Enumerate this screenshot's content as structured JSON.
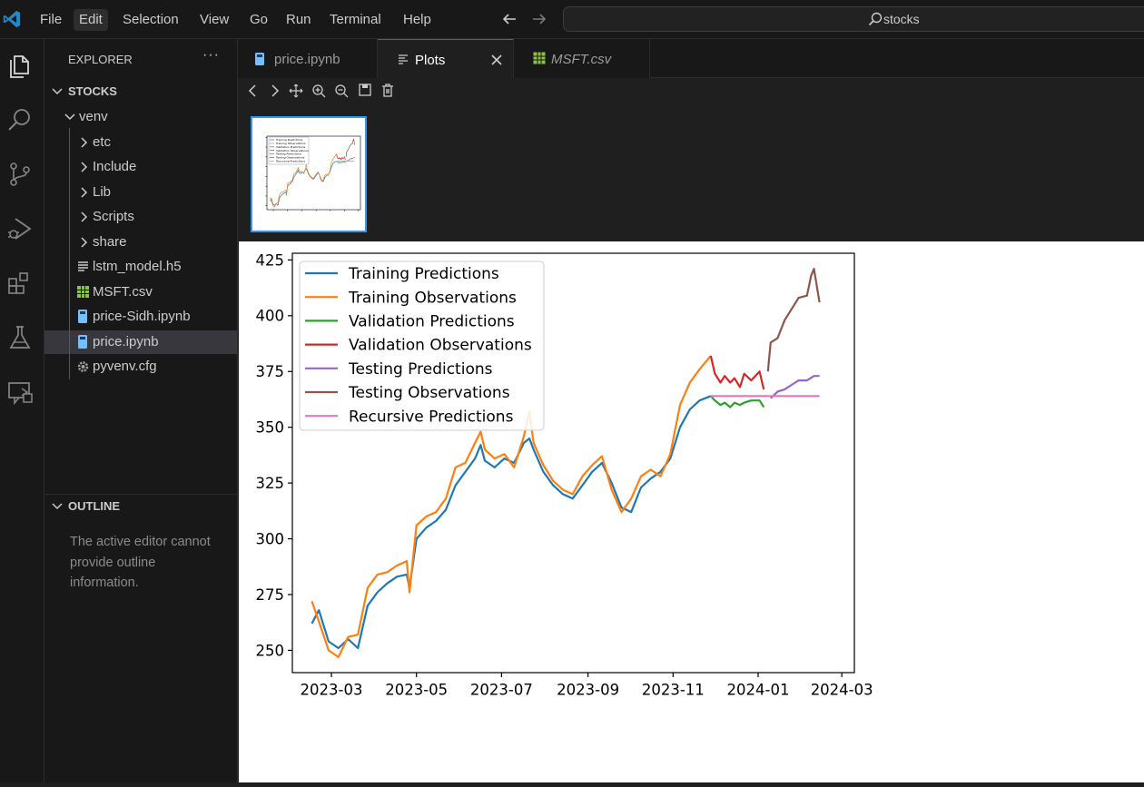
{
  "menu": [
    "File",
    "Edit",
    "Selection",
    "View",
    "Go",
    "Run",
    "Terminal",
    "Help"
  ],
  "command_center": {
    "label": "stocks"
  },
  "sidebar": {
    "title": "EXPLORER",
    "more": "···",
    "workspace": "STOCKS",
    "tree": [
      {
        "label": "venv",
        "kind": "folder-open",
        "depth": 1
      },
      {
        "label": "etc",
        "kind": "folder",
        "depth": 2
      },
      {
        "label": "Include",
        "kind": "folder",
        "depth": 2
      },
      {
        "label": "Lib",
        "kind": "folder",
        "depth": 2
      },
      {
        "label": "Scripts",
        "kind": "folder",
        "depth": 2
      },
      {
        "label": "share",
        "kind": "folder",
        "depth": 2
      },
      {
        "label": "lstm_model.h5",
        "kind": "text-file",
        "depth": 2
      },
      {
        "label": "MSFT.csv",
        "kind": "csv-file",
        "depth": 2
      },
      {
        "label": "price-Sidh.ipynb",
        "kind": "notebook-file",
        "depth": 2
      },
      {
        "label": "price.ipynb",
        "kind": "notebook-file",
        "depth": 2,
        "selected": true
      },
      {
        "label": "pyvenv.cfg",
        "kind": "config-file",
        "depth": 2
      }
    ],
    "outline_title": "OUTLINE",
    "outline_message": "The active editor cannot provide outline information."
  },
  "tabs": [
    {
      "label": "price.ipynb",
      "icon": "notebook-icon",
      "active": false,
      "italic": false
    },
    {
      "label": "Plots",
      "icon": "plots-icon",
      "active": true,
      "italic": false
    },
    {
      "label": "MSFT.csv",
      "icon": "csv-icon",
      "active": false,
      "italic": true
    }
  ],
  "colors": {
    "accent": "#0078d4",
    "training_pred": "#1f77b4",
    "training_obs": "#ff7f0e",
    "validation_pred": "#2ca02c",
    "validation_obs": "#d62728",
    "testing_pred": "#9467bd",
    "testing_obs": "#8c564b",
    "recursive_pred": "#e377c2"
  },
  "chart_data": {
    "type": "line",
    "title": "",
    "xlabel": "",
    "ylabel": "",
    "x_ticks": [
      "2023-03",
      "2023-05",
      "2023-07",
      "2023-09",
      "2023-11",
      "2024-01",
      "2024-03"
    ],
    "xlim": [
      "2023-02-01",
      "2024-03-10"
    ],
    "y_ticks": [
      250,
      275,
      300,
      325,
      350,
      375,
      400,
      425
    ],
    "ylim": [
      240,
      428
    ],
    "legend_position": "upper-left",
    "series": [
      {
        "name": "Training Predictions",
        "color_key": "training_pred",
        "points": [
          [
            "2023-02-15",
            262
          ],
          [
            "2023-02-20",
            268
          ],
          [
            "2023-02-27",
            254
          ],
          [
            "2023-03-06",
            251
          ],
          [
            "2023-03-13",
            255
          ],
          [
            "2023-03-20",
            251
          ],
          [
            "2023-03-27",
            270
          ],
          [
            "2023-04-03",
            276
          ],
          [
            "2023-04-10",
            280
          ],
          [
            "2023-04-17",
            283
          ],
          [
            "2023-04-24",
            284
          ],
          [
            "2023-04-26",
            278
          ],
          [
            "2023-05-01",
            300
          ],
          [
            "2023-05-08",
            305
          ],
          [
            "2023-05-15",
            308
          ],
          [
            "2023-05-22",
            313
          ],
          [
            "2023-05-29",
            324
          ],
          [
            "2023-06-05",
            330
          ],
          [
            "2023-06-12",
            336
          ],
          [
            "2023-06-16",
            342
          ],
          [
            "2023-06-19",
            335
          ],
          [
            "2023-06-26",
            332
          ],
          [
            "2023-07-03",
            336
          ],
          [
            "2023-07-10",
            334
          ],
          [
            "2023-07-17",
            343
          ],
          [
            "2023-07-21",
            345
          ],
          [
            "2023-07-24",
            340
          ],
          [
            "2023-07-31",
            330
          ],
          [
            "2023-08-07",
            324
          ],
          [
            "2023-08-14",
            320
          ],
          [
            "2023-08-21",
            318
          ],
          [
            "2023-08-28",
            324
          ],
          [
            "2023-09-04",
            330
          ],
          [
            "2023-09-11",
            334
          ],
          [
            "2023-09-18",
            325
          ],
          [
            "2023-09-25",
            314
          ],
          [
            "2023-10-02",
            312
          ],
          [
            "2023-10-09",
            323
          ],
          [
            "2023-10-16",
            327
          ],
          [
            "2023-10-23",
            330
          ],
          [
            "2023-10-30",
            336
          ],
          [
            "2023-11-06",
            350
          ],
          [
            "2023-11-13",
            358
          ],
          [
            "2023-11-20",
            362
          ],
          [
            "2023-11-28",
            364
          ]
        ]
      },
      {
        "name": "Training Observations",
        "color_key": "training_obs",
        "points": [
          [
            "2023-02-15",
            272
          ],
          [
            "2023-02-20",
            263
          ],
          [
            "2023-02-27",
            250
          ],
          [
            "2023-03-06",
            247
          ],
          [
            "2023-03-13",
            256
          ],
          [
            "2023-03-20",
            257
          ],
          [
            "2023-03-27",
            278
          ],
          [
            "2023-04-03",
            284
          ],
          [
            "2023-04-10",
            285
          ],
          [
            "2023-04-17",
            288
          ],
          [
            "2023-04-24",
            290
          ],
          [
            "2023-04-26",
            276
          ],
          [
            "2023-05-01",
            306
          ],
          [
            "2023-05-08",
            310
          ],
          [
            "2023-05-15",
            312
          ],
          [
            "2023-05-22",
            318
          ],
          [
            "2023-05-29",
            332
          ],
          [
            "2023-06-05",
            334
          ],
          [
            "2023-06-12",
            343
          ],
          [
            "2023-06-16",
            348
          ],
          [
            "2023-06-19",
            340
          ],
          [
            "2023-06-26",
            336
          ],
          [
            "2023-07-03",
            338
          ],
          [
            "2023-07-10",
            332
          ],
          [
            "2023-07-17",
            346
          ],
          [
            "2023-07-21",
            357
          ],
          [
            "2023-07-24",
            343
          ],
          [
            "2023-07-31",
            333
          ],
          [
            "2023-08-07",
            326
          ],
          [
            "2023-08-14",
            322
          ],
          [
            "2023-08-21",
            320
          ],
          [
            "2023-08-28",
            328
          ],
          [
            "2023-09-04",
            333
          ],
          [
            "2023-09-11",
            337
          ],
          [
            "2023-09-18",
            322
          ],
          [
            "2023-09-25",
            312
          ],
          [
            "2023-10-02",
            318
          ],
          [
            "2023-10-09",
            328
          ],
          [
            "2023-10-16",
            331
          ],
          [
            "2023-10-23",
            328
          ],
          [
            "2023-10-30",
            338
          ],
          [
            "2023-11-06",
            360
          ],
          [
            "2023-11-13",
            370
          ],
          [
            "2023-11-20",
            376
          ],
          [
            "2023-11-28",
            382
          ]
        ]
      },
      {
        "name": "Validation Predictions",
        "color_key": "validation_pred",
        "points": [
          [
            "2023-11-28",
            364
          ],
          [
            "2023-12-01",
            362
          ],
          [
            "2023-12-05",
            360
          ],
          [
            "2023-12-08",
            361
          ],
          [
            "2023-12-12",
            359
          ],
          [
            "2023-12-15",
            361
          ],
          [
            "2023-12-19",
            360
          ],
          [
            "2023-12-22",
            361
          ],
          [
            "2023-12-27",
            362
          ],
          [
            "2024-01-02",
            362
          ],
          [
            "2024-01-05",
            359
          ]
        ]
      },
      {
        "name": "Validation Observations",
        "color_key": "validation_obs",
        "points": [
          [
            "2023-11-28",
            382
          ],
          [
            "2023-12-01",
            374
          ],
          [
            "2023-12-05",
            370
          ],
          [
            "2023-12-08",
            373
          ],
          [
            "2023-12-12",
            370
          ],
          [
            "2023-12-15",
            372
          ],
          [
            "2023-12-19",
            368
          ],
          [
            "2023-12-22",
            374
          ],
          [
            "2023-12-27",
            371
          ],
          [
            "2024-01-02",
            375
          ],
          [
            "2024-01-05",
            367
          ]
        ]
      },
      {
        "name": "Testing Predictions",
        "color_key": "testing_pred",
        "points": [
          [
            "2024-01-10",
            363
          ],
          [
            "2024-01-15",
            366
          ],
          [
            "2024-01-20",
            367
          ],
          [
            "2024-01-25",
            369
          ],
          [
            "2024-01-30",
            371
          ],
          [
            "2024-02-05",
            371
          ],
          [
            "2024-02-10",
            373
          ],
          [
            "2024-02-14",
            373
          ]
        ]
      },
      {
        "name": "Testing Observations",
        "color_key": "testing_obs",
        "points": [
          [
            "2024-01-08",
            375
          ],
          [
            "2024-01-10",
            388
          ],
          [
            "2024-01-15",
            390
          ],
          [
            "2024-01-20",
            398
          ],
          [
            "2024-01-25",
            403
          ],
          [
            "2024-01-30",
            408
          ],
          [
            "2024-02-05",
            409
          ],
          [
            "2024-02-08",
            418
          ],
          [
            "2024-02-10",
            421
          ],
          [
            "2024-02-14",
            406
          ]
        ]
      },
      {
        "name": "Recursive Predictions",
        "color_key": "recursive_pred",
        "points": [
          [
            "2023-11-28",
            364
          ],
          [
            "2024-02-14",
            364
          ]
        ]
      }
    ]
  }
}
